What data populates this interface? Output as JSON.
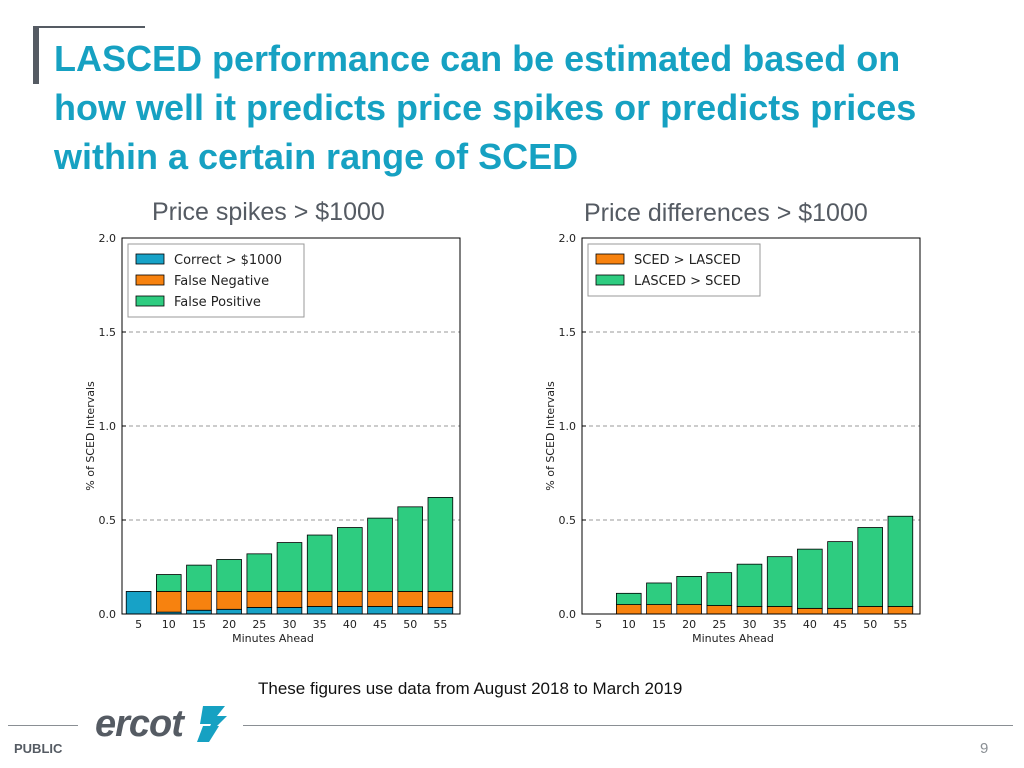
{
  "slide": {
    "title": "LASCED performance can be estimated based on how well it predicts price spikes or predicts prices within a certain range of SCED",
    "footnote": "These figures use data from August 2018 to March 2019",
    "footer_label": "PUBLIC",
    "page_number": "9",
    "logo_text": "ercot"
  },
  "colors": {
    "title": "#16a1c2",
    "blue": "#17a2c7",
    "orange": "#f7820f",
    "green": "#2ecc80",
    "accent_bar": "#555b63"
  },
  "chart_data": [
    {
      "type": "bar",
      "stacked": true,
      "heading": "Price spikes > $1000",
      "title": "Price spikes > $1000",
      "xlabel": "Minutes Ahead",
      "ylabel": "% of SCED Intervals",
      "ylim": [
        0,
        2.0
      ],
      "yticks": [
        "0.0",
        "0.5",
        "1.0",
        "1.5",
        "2.0"
      ],
      "grid": "horizontal dashed",
      "legend_position": "top-left",
      "categories": [
        "5",
        "10",
        "15",
        "20",
        "25",
        "30",
        "35",
        "40",
        "45",
        "50",
        "55"
      ],
      "series": [
        {
          "name": "Correct > $1000",
          "color": "#17a2c7",
          "values": [
            0.12,
            0.01,
            0.02,
            0.025,
            0.035,
            0.035,
            0.04,
            0.04,
            0.04,
            0.04,
            0.035
          ]
        },
        {
          "name": "False Negative",
          "color": "#f7820f",
          "values": [
            0.0,
            0.11,
            0.1,
            0.095,
            0.085,
            0.085,
            0.08,
            0.08,
            0.08,
            0.08,
            0.085
          ]
        },
        {
          "name": "False Positive",
          "color": "#2ecc80",
          "values": [
            0.0,
            0.09,
            0.14,
            0.17,
            0.2,
            0.26,
            0.3,
            0.34,
            0.39,
            0.45,
            0.5
          ]
        }
      ]
    },
    {
      "type": "bar",
      "stacked": true,
      "heading": "Price differences > $1000",
      "title": "Price differences > $1000",
      "xlabel": "Minutes Ahead",
      "ylabel": "% of SCED Intervals",
      "ylim": [
        0,
        2.0
      ],
      "yticks": [
        "0.0",
        "0.5",
        "1.0",
        "1.5",
        "2.0"
      ],
      "grid": "horizontal dashed",
      "legend_position": "top-left",
      "categories": [
        "5",
        "10",
        "15",
        "20",
        "25",
        "30",
        "35",
        "40",
        "45",
        "50",
        "55"
      ],
      "series": [
        {
          "name": "SCED > LASCED",
          "color": "#f7820f",
          "values": [
            0.0,
            0.05,
            0.05,
            0.05,
            0.045,
            0.04,
            0.04,
            0.03,
            0.03,
            0.04,
            0.04
          ]
        },
        {
          "name": "LASCED > SCED",
          "color": "#2ecc80",
          "values": [
            0.0,
            0.06,
            0.115,
            0.15,
            0.175,
            0.225,
            0.265,
            0.315,
            0.355,
            0.42,
            0.48
          ]
        }
      ]
    }
  ]
}
